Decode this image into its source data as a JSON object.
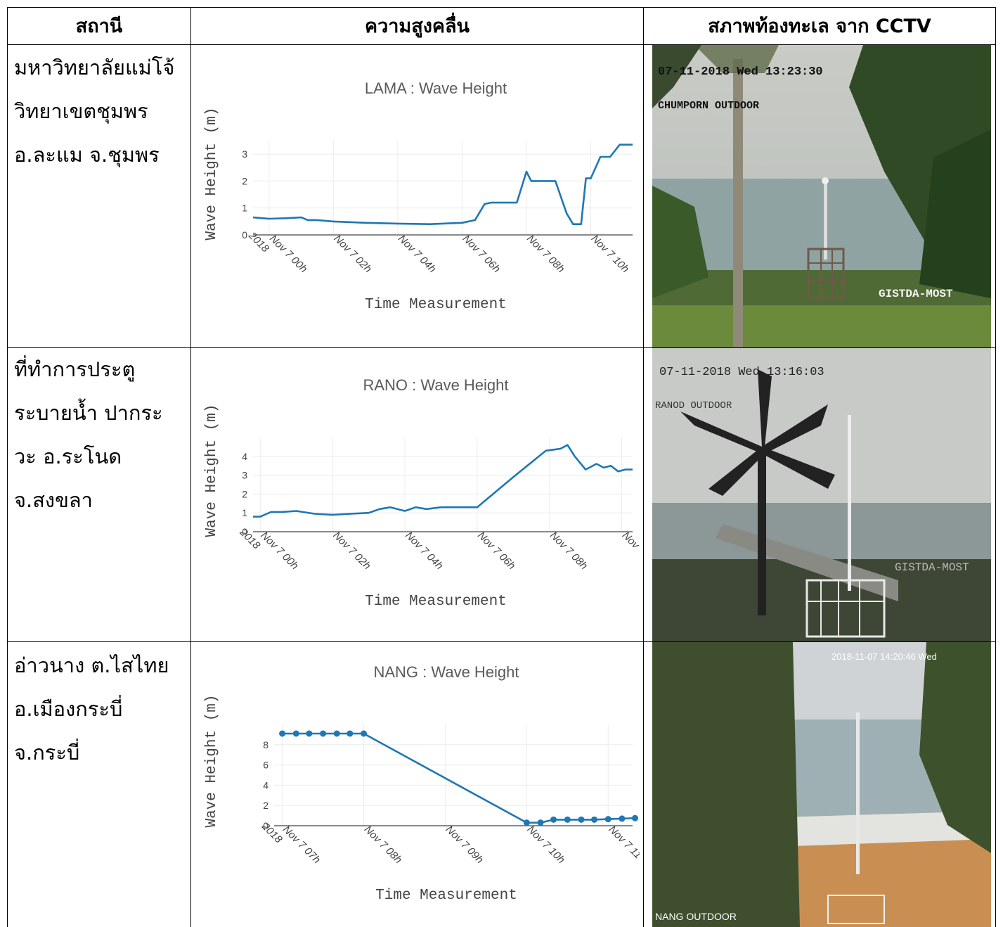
{
  "table": {
    "headers": [
      "สถานี",
      "ความสูงคลื่น",
      "สภาพท้องทะเล จาก CCTV"
    ],
    "rows": [
      {
        "station_lines": [
          "มหาวิทยาลัยแม่โจ้",
          "วิทยาเขตชุมพร",
          "อ.ละแม จ.ชุมพร"
        ],
        "cctv": {
          "timestamp": "07-11-2018 Wed 13:23:30",
          "label": "CHUMPORN OUTDOOR",
          "watermark": "GISTDA-MOST"
        }
      },
      {
        "station_lines": [
          "ที่ทำการประตู",
          "ระบายน้ำ ปากระ",
          "วะ อ.ระโนด",
          "จ.สงขลา"
        ],
        "cctv": {
          "timestamp": "07-11-2018 Wed 13:16:03",
          "label": "RANOD OUTDOOR",
          "watermark": "GISTDA-MOST"
        }
      },
      {
        "station_lines": [
          "อ่าวนาง ต.ไสไทย",
          "อ.เมืองกระบี่",
          "จ.กระบี่"
        ],
        "cctv": {
          "timestamp": "2018-11-07 14:20:46 Wed",
          "label": "NANG OUTDOOR",
          "watermark": ""
        }
      }
    ]
  },
  "chart_data": [
    {
      "type": "line",
      "title": "LAMA : Wave Height",
      "xlabel": "Time Measurement",
      "ylabel": "Wave Height  (m)",
      "x_ticks": [
        "Nov 7 00h\n2018",
        "Nov 7 02h",
        "Nov 7 04h",
        "Nov 7 06h",
        "Nov 7 08h",
        "Nov 7 10h"
      ],
      "y_ticks": [
        "0",
        "1",
        "2",
        "3"
      ],
      "xlim": [
        -0.5,
        11.3
      ],
      "ylim": [
        0,
        3.5
      ],
      "color": "#1f77b4",
      "markers": false,
      "x": [
        -0.5,
        0,
        0.5,
        1,
        1.2,
        1.5,
        2,
        3,
        4,
        5,
        6,
        6.4,
        6.7,
        6.9,
        7.3,
        7.7,
        8,
        8.15,
        8.4,
        8.9,
        9.25,
        9.45,
        9.7,
        9.85,
        10,
        10.3,
        10.6,
        10.9,
        11.3
      ],
      "y": [
        0.65,
        0.6,
        0.62,
        0.65,
        0.55,
        0.55,
        0.5,
        0.45,
        0.42,
        0.4,
        0.45,
        0.55,
        1.15,
        1.2,
        1.2,
        1.2,
        2.35,
        2.0,
        2.0,
        2.0,
        0.8,
        0.4,
        0.4,
        2.1,
        2.1,
        2.9,
        2.9,
        3.35,
        3.35
      ],
      "grid": true
    },
    {
      "type": "line",
      "title": "RANO : Wave Height",
      "xlabel": "Time Measurement",
      "ylabel": "Wave Height  (m)",
      "x_ticks": [
        "Nov 7 00h\n2018",
        "Nov 7 02h",
        "Nov 7 04h",
        "Nov 7 06h",
        "Nov 7 08h",
        "Nov"
      ],
      "y_ticks": [
        "0",
        "1",
        "2",
        "3",
        "4"
      ],
      "xlim": [
        -0.2,
        10.3
      ],
      "ylim": [
        0,
        5
      ],
      "color": "#1f77b4",
      "markers": false,
      "x": [
        -0.2,
        0,
        0.3,
        0.6,
        1,
        1.5,
        2,
        2.5,
        3,
        3.3,
        3.6,
        4,
        4.3,
        4.6,
        5,
        5.5,
        6,
        7,
        7.9,
        8.3,
        8.5,
        8.7,
        9.0,
        9.3,
        9.5,
        9.7,
        9.9,
        10.1,
        10.3
      ],
      "y": [
        0.8,
        0.8,
        1.05,
        1.05,
        1.1,
        0.95,
        0.9,
        0.95,
        1.0,
        1.2,
        1.3,
        1.1,
        1.3,
        1.2,
        1.3,
        1.3,
        1.3,
        2.9,
        4.3,
        4.4,
        4.6,
        4.0,
        3.3,
        3.6,
        3.4,
        3.5,
        3.2,
        3.3,
        3.3
      ],
      "grid": true
    },
    {
      "type": "line",
      "title": "NANG : Wave Height",
      "xlabel": "Time Measurement",
      "ylabel": "Wave Height  (m)",
      "x_ticks": [
        "Nov 7 07h\n2018",
        "Nov 7 08h",
        "Nov 7 09h",
        "Nov 7 10h",
        "Nov 7 11"
      ],
      "y_ticks": [
        "0",
        "2",
        "4",
        "6",
        "8"
      ],
      "xlim": [
        -0.1,
        4.3
      ],
      "ylim": [
        0,
        10
      ],
      "color": "#1f77b4",
      "markers": true,
      "x": [
        0,
        0.17,
        0.33,
        0.5,
        0.67,
        0.83,
        1.0,
        3.0,
        3.17,
        3.33,
        3.5,
        3.67,
        3.83,
        4.0,
        4.17,
        4.33
      ],
      "y": [
        9.1,
        9.1,
        9.1,
        9.1,
        9.1,
        9.1,
        9.1,
        0.3,
        0.3,
        0.6,
        0.6,
        0.6,
        0.6,
        0.65,
        0.7,
        0.75
      ],
      "grid": true
    }
  ]
}
